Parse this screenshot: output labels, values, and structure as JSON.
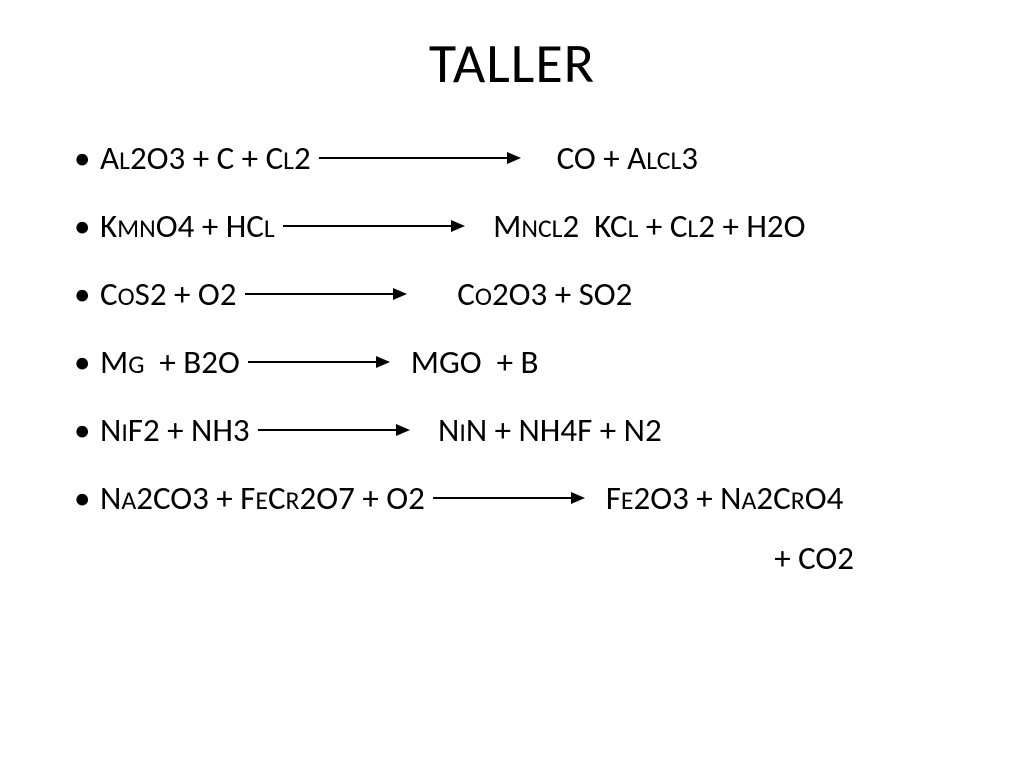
{
  "title": "TALLER",
  "title_fontsize": 56,
  "body_fontsize": 33,
  "equations": [
    {
      "lhs": [
        [
          "A",
          "L"
        ],
        [
          "2",
          ""
        ],
        [
          "O",
          ""
        ],
        [
          "3",
          ""
        ],
        [
          " + C + C",
          "L"
        ],
        [
          "2",
          ""
        ]
      ],
      "arrow_width": 200,
      "rhs_prefix": "    ",
      "rhs": [
        [
          "CO + A",
          "LCL"
        ],
        [
          "3",
          ""
        ]
      ]
    },
    {
      "lhs": [
        [
          "K",
          "M"
        ],
        [
          "",
          "N"
        ],
        [
          "O",
          ""
        ],
        [
          "4",
          ""
        ],
        [
          " + HC",
          "L"
        ]
      ],
      "arrow_width": 180,
      "rhs_prefix": "   ",
      "rhs": [
        [
          "M",
          "NCL"
        ],
        [
          "2",
          ""
        ],
        [
          "  KC",
          "L"
        ],
        [
          " + C",
          "L"
        ],
        [
          "2",
          ""
        ],
        [
          " + H",
          ""
        ],
        [
          "2",
          ""
        ],
        [
          "O",
          ""
        ]
      ]
    },
    {
      "lhs": [
        [
          "C",
          "O"
        ],
        [
          "S",
          ""
        ],
        [
          "2",
          ""
        ],
        [
          " + O",
          ""
        ],
        [
          "2",
          ""
        ]
      ],
      "arrow_width": 160,
      "rhs_prefix": "      ",
      "rhs": [
        [
          "C",
          "O"
        ],
        [
          "2",
          ""
        ],
        [
          "O",
          ""
        ],
        [
          "3",
          ""
        ],
        [
          " + SO",
          ""
        ],
        [
          "2",
          ""
        ]
      ]
    },
    {
      "lhs": [
        [
          "M",
          "G"
        ],
        [
          "  + B",
          ""
        ],
        [
          "2",
          ""
        ],
        [
          "O",
          ""
        ]
      ],
      "arrow_width": 140,
      "rhs_prefix": "  ",
      "rhs": [
        [
          "MGO  + B",
          ""
        ]
      ]
    },
    {
      "lhs": [
        [
          "N",
          "I"
        ],
        [
          "F",
          ""
        ],
        [
          "2",
          ""
        ],
        [
          " + NH",
          ""
        ],
        [
          "3",
          ""
        ]
      ],
      "arrow_width": 150,
      "rhs_prefix": "   ",
      "rhs": [
        [
          "N",
          "I"
        ],
        [
          "N + NH",
          ""
        ],
        [
          "4",
          ""
        ],
        [
          "F + N",
          ""
        ],
        [
          "2",
          ""
        ]
      ]
    },
    {
      "lhs": [
        [
          "N",
          "A"
        ],
        [
          "2",
          ""
        ],
        [
          "CO",
          ""
        ],
        [
          "3",
          ""
        ],
        [
          " + F",
          "E"
        ],
        [
          "C",
          "R"
        ],
        [
          "2",
          ""
        ],
        [
          "O",
          ""
        ],
        [
          "7",
          ""
        ],
        [
          " + O",
          ""
        ],
        [
          "2",
          ""
        ]
      ],
      "arrow_width": 150,
      "rhs_prefix": "  ",
      "rhs": [
        [
          "F",
          "E"
        ],
        [
          "2",
          ""
        ],
        [
          "O",
          ""
        ],
        [
          "3",
          ""
        ],
        [
          " + N",
          "A"
        ],
        [
          "2",
          ""
        ],
        [
          "C",
          "R"
        ],
        [
          "O",
          ""
        ],
        [
          "4",
          ""
        ]
      ],
      "extra": [
        [
          "+ CO",
          ""
        ],
        [
          "2",
          ""
        ]
      ]
    }
  ]
}
